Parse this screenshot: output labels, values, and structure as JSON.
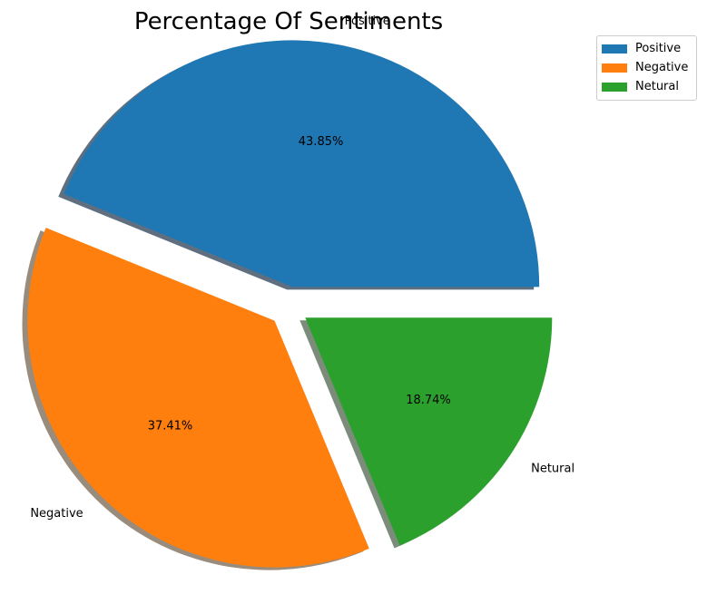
{
  "chart_data": {
    "type": "pie",
    "title": "Percentage Of Sentiments",
    "categories": [
      "Positive",
      "Negative",
      "Netural"
    ],
    "values": [
      43.85,
      37.41,
      18.74
    ],
    "percent_labels": [
      "43.85%",
      "37.41%",
      "18.74%"
    ],
    "colors": [
      "#1f77b4",
      "#ff7f0e",
      "#2ca02c"
    ],
    "exploded": [
      true,
      true,
      true
    ],
    "shadow": true,
    "start_angle_deg": 0,
    "legend_position": "top-right"
  }
}
